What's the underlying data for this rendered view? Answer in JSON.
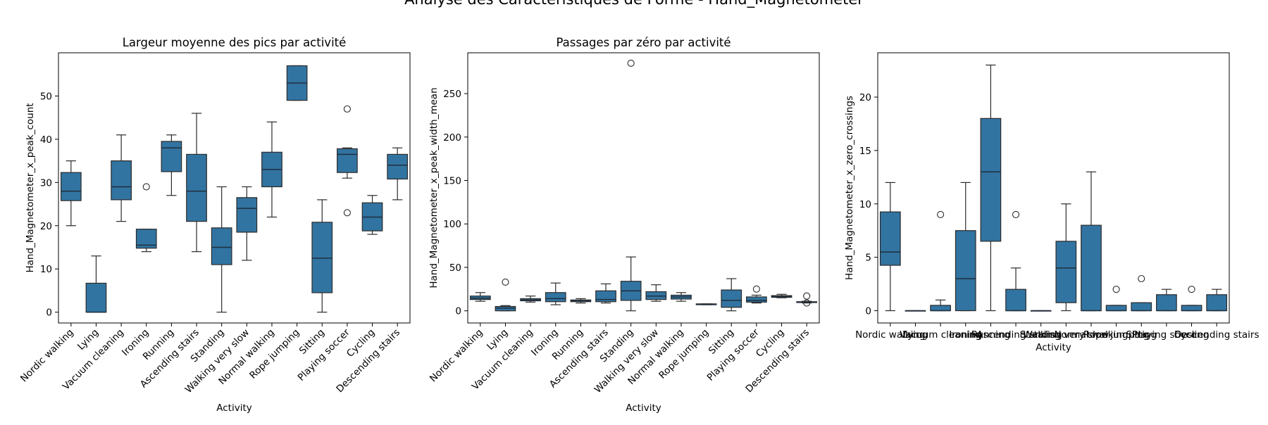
{
  "figure": {
    "suptitle": "Analyse des Caractéristiques de Forme - Hand_Magnetometer"
  },
  "style": {
    "box_fill": "#3274a1",
    "box_edge": "#2b2b2b",
    "median_color": "#1f2f3f",
    "axes_edge": "#000000"
  },
  "chart_data": [
    {
      "type": "box",
      "title": "Largeur moyenne des pics par activité",
      "xlabel": "Activity",
      "ylabel": "Hand_Magnetometer_x_peak_count",
      "ylim": [
        -2.5,
        60
      ],
      "yticks": [
        0,
        10,
        20,
        30,
        40,
        50
      ],
      "xtick_rotation": 45,
      "categories": [
        "Nordic walking",
        "Lying",
        "Vacuum cleaning",
        "Ironing",
        "Running",
        "Ascending stairs",
        "Standing",
        "Walking very slow",
        "Normal walking",
        "Rope jumping",
        "Sitting",
        "Playing soccer",
        "Cycling",
        "Descending stairs"
      ],
      "boxes": [
        {
          "whislo": 20,
          "q1": 25.8,
          "med": 28,
          "q3": 32.3,
          "whishi": 35,
          "fliers": []
        },
        {
          "whislo": 0,
          "q1": 0,
          "med": 0,
          "q3": 6.7,
          "whishi": 13,
          "fliers": []
        },
        {
          "whislo": 21,
          "q1": 26,
          "med": 29,
          "q3": 35,
          "whishi": 41,
          "fliers": []
        },
        {
          "whislo": 14,
          "q1": 14.8,
          "med": 15.5,
          "q3": 19.2,
          "whishi": 19.2,
          "fliers": [
            29
          ]
        },
        {
          "whislo": 27,
          "q1": 32.5,
          "med": 38,
          "q3": 39.5,
          "whishi": 41,
          "fliers": []
        },
        {
          "whislo": 14,
          "q1": 21,
          "med": 28,
          "q3": 36.5,
          "whishi": 46,
          "fliers": []
        },
        {
          "whislo": 0,
          "q1": 11,
          "med": 15,
          "q3": 19.5,
          "whishi": 29,
          "fliers": []
        },
        {
          "whislo": 12,
          "q1": 18.5,
          "med": 24,
          "q3": 26.5,
          "whishi": 29,
          "fliers": []
        },
        {
          "whislo": 22,
          "q1": 29,
          "med": 33,
          "q3": 37,
          "whishi": 44,
          "fliers": []
        },
        {
          "whislo": 49,
          "q1": 49,
          "med": 53,
          "q3": 57,
          "whishi": 57,
          "fliers": []
        },
        {
          "whislo": 0,
          "q1": 4.5,
          "med": 12.5,
          "q3": 20.8,
          "whishi": 26,
          "fliers": []
        },
        {
          "whislo": 31,
          "q1": 32.3,
          "med": 36.5,
          "q3": 37.8,
          "whishi": 38,
          "fliers": [
            47,
            23
          ]
        },
        {
          "whislo": 18,
          "q1": 18.8,
          "med": 22,
          "q3": 25.3,
          "whishi": 27,
          "fliers": []
        },
        {
          "whislo": 26,
          "q1": 30.8,
          "med": 34,
          "q3": 36.5,
          "whishi": 38,
          "fliers": []
        }
      ]
    },
    {
      "type": "box",
      "title": "Passages par zéro par activité",
      "xlabel": "Activity",
      "ylabel": "Hand_Magnetometer_x_peak_width_mean",
      "ylim": [
        -14,
        297
      ],
      "yticks": [
        0,
        50,
        100,
        150,
        200,
        250
      ],
      "xtick_rotation": 45,
      "categories": [
        "Nordic walking",
        "Lying",
        "Vacuum cleaning",
        "Ironing",
        "Running",
        "Ascending stairs",
        "Standing",
        "Walking very slow",
        "Normal walking",
        "Rope jumping",
        "Sitting",
        "Playing soccer",
        "Cycling",
        "Descending stairs"
      ],
      "boxes": [
        {
          "whislo": 11,
          "q1": 13,
          "med": 14.5,
          "q3": 17,
          "whishi": 21,
          "fliers": []
        },
        {
          "whislo": 0,
          "q1": 0,
          "med": 3,
          "q3": 5,
          "whishi": 6,
          "fliers": [
            33
          ]
        },
        {
          "whislo": 10,
          "q1": 11.5,
          "med": 12.5,
          "q3": 14,
          "whishi": 17,
          "fliers": []
        },
        {
          "whislo": 7,
          "q1": 10.5,
          "med": 14,
          "q3": 21,
          "whishi": 32,
          "fliers": []
        },
        {
          "whislo": 9,
          "q1": 10.5,
          "med": 11.5,
          "q3": 12.5,
          "whishi": 14,
          "fliers": []
        },
        {
          "whislo": 9,
          "q1": 10.5,
          "med": 13,
          "q3": 23,
          "whishi": 31,
          "fliers": []
        },
        {
          "whislo": 0,
          "q1": 12,
          "med": 23,
          "q3": 34,
          "whishi": 62,
          "fliers": [
            285
          ]
        },
        {
          "whislo": 11,
          "q1": 13,
          "med": 17,
          "q3": 22,
          "whishi": 30,
          "fliers": []
        },
        {
          "whislo": 11,
          "q1": 13.5,
          "med": 16,
          "q3": 18,
          "whishi": 21,
          "fliers": []
        },
        {
          "whislo": 7,
          "q1": 7,
          "med": 7.5,
          "q3": 8,
          "whishi": 8,
          "fliers": []
        },
        {
          "whislo": 0,
          "q1": 4,
          "med": 12,
          "q3": 24,
          "whishi": 37,
          "fliers": []
        },
        {
          "whislo": 9,
          "q1": 10,
          "med": 12,
          "q3": 16,
          "whishi": 18,
          "fliers": [
            25
          ]
        },
        {
          "whislo": 15,
          "q1": 15.5,
          "med": 16.5,
          "q3": 17.5,
          "whishi": 19,
          "fliers": []
        },
        {
          "whislo": 9,
          "q1": 9.5,
          "med": 10,
          "q3": 10.5,
          "whishi": 11,
          "fliers": [
            17,
            9
          ]
        }
      ]
    },
    {
      "type": "box",
      "title": "",
      "xlabel": "Activity",
      "ylabel": "Hand_Magnetometer_x_zero_crossings",
      "ylim": [
        -1.15,
        24.15
      ],
      "yticks": [
        0,
        5,
        10,
        15,
        20
      ],
      "xtick_rotation": 0,
      "categories": [
        "Nordic walking",
        "Lying",
        "Vacuum cleaning",
        "Ironing",
        "Running",
        "Ascending stairs",
        "Standing",
        "Walking very slow",
        "Normal walking",
        "Rope jumping",
        "Sitting",
        "Playing soccer",
        "Cycling",
        "Descending stairs"
      ],
      "boxes": [
        {
          "whislo": 0,
          "q1": 4.25,
          "med": 5.5,
          "q3": 9.25,
          "whishi": 12,
          "fliers": []
        },
        {
          "whislo": 0,
          "q1": 0,
          "med": 0,
          "q3": 0,
          "whishi": 0,
          "fliers": []
        },
        {
          "whislo": 0,
          "q1": 0,
          "med": 0,
          "q3": 0.5,
          "whishi": 1,
          "fliers": [
            9
          ]
        },
        {
          "whislo": 0,
          "q1": 0,
          "med": 3,
          "q3": 7.5,
          "whishi": 12,
          "fliers": []
        },
        {
          "whislo": 0,
          "q1": 6.5,
          "med": 13,
          "q3": 18,
          "whishi": 23,
          "fliers": []
        },
        {
          "whislo": 0,
          "q1": 0,
          "med": 0,
          "q3": 2,
          "whishi": 4,
          "fliers": [
            9
          ]
        },
        {
          "whislo": 0,
          "q1": 0,
          "med": 0,
          "q3": 0,
          "whishi": 0,
          "fliers": []
        },
        {
          "whislo": 0,
          "q1": 0.75,
          "med": 4,
          "q3": 6.5,
          "whishi": 10,
          "fliers": []
        },
        {
          "whislo": 0,
          "q1": 0,
          "med": 0,
          "q3": 8,
          "whishi": 13,
          "fliers": []
        },
        {
          "whislo": 0,
          "q1": 0,
          "med": 0,
          "q3": 0.5,
          "whishi": 0.5,
          "fliers": [
            2
          ]
        },
        {
          "whislo": 0,
          "q1": 0,
          "med": 0,
          "q3": 0.75,
          "whishi": 0.75,
          "fliers": [
            3
          ]
        },
        {
          "whislo": 0,
          "q1": 0,
          "med": 0,
          "q3": 1.5,
          "whishi": 2,
          "fliers": []
        },
        {
          "whislo": 0,
          "q1": 0,
          "med": 0,
          "q3": 0.5,
          "whishi": 0.5,
          "fliers": [
            2
          ]
        },
        {
          "whislo": 0,
          "q1": 0,
          "med": 0,
          "q3": 1.5,
          "whishi": 2,
          "fliers": []
        }
      ]
    }
  ]
}
